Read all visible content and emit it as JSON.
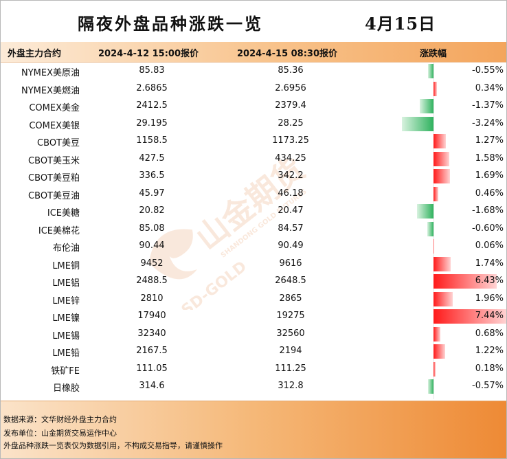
{
  "title": "隔夜外盘品种涨跌一览",
  "date": "4月15日",
  "header": {
    "col_name": "外盘主力合约",
    "col_p1": "2024-4-12 15:00报价",
    "col_p2": "2024-4-15 08:30报价",
    "col_pct": "涨跌幅"
  },
  "colors": {
    "up": "#ff1a1a",
    "down": "#2fb25e",
    "accent": "#f3a55d"
  },
  "bar_scale_max_pct": 7.44,
  "rows": [
    {
      "name": "NYMEX美原油",
      "p1": "85.83",
      "p2": "85.36",
      "pct": "-0.55%",
      "value": -0.55
    },
    {
      "name": "NYMEX美燃油",
      "p1": "2.6865",
      "p2": "2.6956",
      "pct": "0.34%",
      "value": 0.34
    },
    {
      "name": "COMEX美金",
      "p1": "2412.5",
      "p2": "2379.4",
      "pct": "-1.37%",
      "value": -1.37
    },
    {
      "name": "COMEX美银",
      "p1": "29.195",
      "p2": "28.25",
      "pct": "-3.24%",
      "value": -3.24
    },
    {
      "name": "CBOT美豆",
      "p1": "1158.5",
      "p2": "1173.25",
      "pct": "1.27%",
      "value": 1.27
    },
    {
      "name": "CBOT美玉米",
      "p1": "427.5",
      "p2": "434.25",
      "pct": "1.58%",
      "value": 1.58
    },
    {
      "name": "CBOT美豆粕",
      "p1": "336.5",
      "p2": "342.2",
      "pct": "1.69%",
      "value": 1.69
    },
    {
      "name": "CBOT美豆油",
      "p1": "45.97",
      "p2": "46.18",
      "pct": "0.46%",
      "value": 0.46
    },
    {
      "name": "ICE美糖",
      "p1": "20.82",
      "p2": "20.47",
      "pct": "-1.68%",
      "value": -1.68
    },
    {
      "name": "ICE美棉花",
      "p1": "85.08",
      "p2": "84.57",
      "pct": "-0.60%",
      "value": -0.6
    },
    {
      "name": "布伦油",
      "p1": "90.44",
      "p2": "90.49",
      "pct": "0.06%",
      "value": 0.06
    },
    {
      "name": "LME铜",
      "p1": "9452",
      "p2": "9616",
      "pct": "1.74%",
      "value": 1.74
    },
    {
      "name": "LME铝",
      "p1": "2488.5",
      "p2": "2648.5",
      "pct": "6.43%",
      "value": 6.43
    },
    {
      "name": "LME锌",
      "p1": "2810",
      "p2": "2865",
      "pct": "1.96%",
      "value": 1.96
    },
    {
      "name": "LME镍",
      "p1": "17940",
      "p2": "19275",
      "pct": "7.44%",
      "value": 7.44
    },
    {
      "name": "LME锡",
      "p1": "32340",
      "p2": "32560",
      "pct": "0.68%",
      "value": 0.68
    },
    {
      "name": "LME铅",
      "p1": "2167.5",
      "p2": "2194",
      "pct": "1.22%",
      "value": 1.22
    },
    {
      "name": "铁矿FE",
      "p1": "111.05",
      "p2": "111.25",
      "pct": "0.18%",
      "value": 0.18
    },
    {
      "name": "日橡胶",
      "p1": "314.6",
      "p2": "312.8",
      "pct": "-0.57%",
      "value": -0.57
    }
  ],
  "watermark": {
    "cn": "山金期货",
    "en1": "SHANDONG GOLD FUTURES",
    "en2": "SD-GOLD",
    "icon": "sd-gold-logo-icon"
  },
  "footer": {
    "source": "数据来源：文华财经外盘主力合约",
    "publisher": "发布单位：山金期货交易运作中心",
    "disclaimer": "外盘品种涨跌一览表仅为数据引用，不构成交易指导，请谨慎操作"
  }
}
